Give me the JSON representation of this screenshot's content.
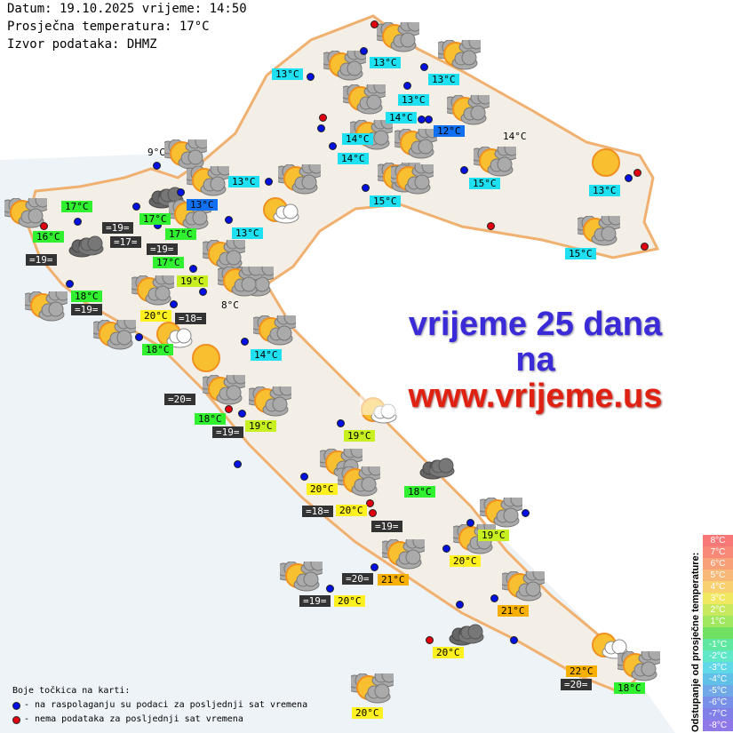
{
  "header": {
    "line1": "Datum: 19.10.2025 vrijeme: 14:50",
    "line2": "Prosječna temperatura: 17°C",
    "line3": "Izvor podataka: DHMZ"
  },
  "banner": {
    "line1": "vrijeme 25 dana",
    "line2": "na",
    "line3": "www.vrijeme.us"
  },
  "colors": {
    "cyan": "#1ee0f0",
    "blue": "#1070f0",
    "green": "#30f030",
    "lime": "#c8f020",
    "yellow": "#fff020",
    "orange": "#f8b000",
    "dark": "#333333",
    "dot_ok": "#0010e0",
    "dot_missing": "#e00010"
  },
  "labels": [
    {
      "text": "13°C",
      "color": "cyan"
    },
    {
      "text": "13°C",
      "color": "cyan"
    },
    {
      "text": "13°C",
      "color": "cyan"
    },
    {
      "text": "13°C",
      "color": "cyan"
    },
    {
      "text": "14°C",
      "color": "cyan"
    },
    {
      "text": "12°C",
      "color": "blue"
    },
    {
      "text": "14°C",
      "color": "plain"
    },
    {
      "text": "14°C",
      "color": "cyan"
    },
    {
      "text": "14°C",
      "color": "cyan"
    },
    {
      "text": "13°C",
      "color": "cyan"
    },
    {
      "text": "15°C",
      "color": "cyan"
    },
    {
      "text": "15°C",
      "color": "cyan"
    },
    {
      "text": "13°C",
      "color": "cyan"
    },
    {
      "text": "15°C",
      "color": "cyan"
    },
    {
      "text": "9°C",
      "color": "plain"
    },
    {
      "text": "17°C",
      "color": "green"
    },
    {
      "text": "16°C",
      "color": "green"
    },
    {
      "text": "=19=",
      "color": "dark"
    },
    {
      "text": "=19=",
      "color": "dark"
    },
    {
      "text": "17°C",
      "color": "green"
    },
    {
      "text": "=17=",
      "color": "dark"
    },
    {
      "text": "17°C",
      "color": "green"
    },
    {
      "text": "17°C",
      "color": "green"
    },
    {
      "text": "=19=",
      "color": "dark"
    },
    {
      "text": "13°C",
      "color": "blue"
    },
    {
      "text": "13°C",
      "color": "cyan"
    },
    {
      "text": "19°C",
      "color": "lime"
    },
    {
      "text": "18°C",
      "color": "green"
    },
    {
      "text": "=19=",
      "color": "dark"
    },
    {
      "text": "20°C",
      "color": "yellow"
    },
    {
      "text": "=18=",
      "color": "dark"
    },
    {
      "text": "8°C",
      "color": "plain"
    },
    {
      "text": "18°C",
      "color": "green"
    },
    {
      "text": "14°C",
      "color": "cyan"
    },
    {
      "text": "=20=",
      "color": "dark"
    },
    {
      "text": "18°C",
      "color": "green"
    },
    {
      "text": "19°C",
      "color": "lime"
    },
    {
      "text": "=19=",
      "color": "dark"
    },
    {
      "text": "19°C",
      "color": "lime"
    },
    {
      "text": "20°C",
      "color": "yellow"
    },
    {
      "text": "18°C",
      "color": "green"
    },
    {
      "text": "=18=",
      "color": "dark"
    },
    {
      "text": "20°C",
      "color": "yellow"
    },
    {
      "text": "=19=",
      "color": "dark"
    },
    {
      "text": "19°C",
      "color": "lime"
    },
    {
      "text": "20°C",
      "color": "yellow"
    },
    {
      "text": "=20=",
      "color": "dark"
    },
    {
      "text": "21°C",
      "color": "orange"
    },
    {
      "text": "=19=",
      "color": "dark"
    },
    {
      "text": "20°C",
      "color": "yellow"
    },
    {
      "text": "21°C",
      "color": "orange"
    },
    {
      "text": "20°C",
      "color": "yellow"
    },
    {
      "text": "22°C",
      "color": "orange"
    },
    {
      "text": "=20=",
      "color": "dark"
    },
    {
      "text": "18°C",
      "color": "green"
    },
    {
      "text": "20°C",
      "color": "yellow"
    }
  ],
  "stations": [
    {
      "status": "ok"
    },
    {
      "status": "missing"
    },
    {
      "status": "ok"
    },
    {
      "status": "ok"
    },
    {
      "status": "ok"
    },
    {
      "status": "ok"
    },
    {
      "status": "missing"
    },
    {
      "status": "ok"
    },
    {
      "status": "ok"
    },
    {
      "status": "ok"
    },
    {
      "status": "ok"
    },
    {
      "status": "ok"
    },
    {
      "status": "ok"
    },
    {
      "status": "missing"
    },
    {
      "status": "missing"
    },
    {
      "status": "missing"
    },
    {
      "status": "ok"
    },
    {
      "status": "ok"
    },
    {
      "status": "ok"
    },
    {
      "status": "ok"
    },
    {
      "status": "missing"
    },
    {
      "status": "ok"
    },
    {
      "status": "ok"
    },
    {
      "status": "ok"
    },
    {
      "status": "ok"
    },
    {
      "status": "ok"
    },
    {
      "status": "ok"
    },
    {
      "status": "ok"
    },
    {
      "status": "ok"
    },
    {
      "status": "ok"
    },
    {
      "status": "ok"
    },
    {
      "status": "missing"
    },
    {
      "status": "ok"
    },
    {
      "status": "ok"
    },
    {
      "status": "ok"
    },
    {
      "status": "missing"
    },
    {
      "status": "ok"
    },
    {
      "status": "ok"
    },
    {
      "status": "ok"
    },
    {
      "status": "ok"
    },
    {
      "status": "ok"
    },
    {
      "status": "missing"
    },
    {
      "status": "ok"
    },
    {
      "status": "missing"
    },
    {
      "status": "ok"
    },
    {
      "status": "ok"
    },
    {
      "status": "ok"
    }
  ],
  "icons": [
    "partly-cloudy",
    "partly-cloudy",
    "partly-cloudy",
    "partly-cloudy",
    "partly-cloudy",
    "partly-cloudy",
    "partly-cloudy",
    "partly-cloudy",
    "partly-cloudy",
    "partly-cloudy",
    "sunny",
    "partly-cloudy",
    "partly-cloudy",
    "partly-cloudy",
    "sun-light-cloud",
    "overcast",
    "partly-cloudy",
    "partly-cloudy",
    "partly-cloudy",
    "overcast",
    "partly-cloudy",
    "partly-cloudy",
    "partly-cloudy",
    "partly-cloudy",
    "partly-cloudy",
    "partly-cloudy",
    "sun-light-cloud",
    "partly-cloudy",
    "partly-cloudy",
    "partly-cloudy",
    "overcast",
    "partly-cloudy",
    "partly-cloudy",
    "partly-cloudy",
    "partly-cloudy",
    "overcast",
    "partly-cloudy",
    "partly-cloudy",
    "partly-cloudy",
    "sun-light-cloud",
    "partly-cloudy",
    "sunny",
    "sun-light-cloud",
    "partly-cloudy"
  ],
  "legend": {
    "title": "Boje točkica na karti:",
    "ok": "- na raspolaganju su podaci za posljednji sat vremena",
    "missing": "- nema podataka za posljednji sat vremena"
  },
  "scale": {
    "title": "Odstupanje od prosječne temperature:",
    "steps": [
      {
        "label": "8°C",
        "color": "#f87878"
      },
      {
        "label": "7°C",
        "color": "#f88878"
      },
      {
        "label": "6°C",
        "color": "#f8a078"
      },
      {
        "label": "5°C",
        "color": "#f8b878"
      },
      {
        "label": "4°C",
        "color": "#f8d070"
      },
      {
        "label": "3°C",
        "color": "#f0e860"
      },
      {
        "label": "2°C",
        "color": "#c8e860"
      },
      {
        "label": "1°C",
        "color": "#a0e860"
      },
      {
        "label": "",
        "color": "#70e060"
      },
      {
        "label": "-1°C",
        "color": "#60e8a0"
      },
      {
        "label": "-2°C",
        "color": "#60e8c8"
      },
      {
        "label": "-3°C",
        "color": "#60d8e8"
      },
      {
        "label": "-4°C",
        "color": "#60c0e8"
      },
      {
        "label": "-5°C",
        "color": "#70a8e8"
      },
      {
        "label": "-6°C",
        "color": "#7890e8"
      },
      {
        "label": "-7°C",
        "color": "#8080e8"
      },
      {
        "label": "-8°C",
        "color": "#9078e8"
      }
    ]
  }
}
